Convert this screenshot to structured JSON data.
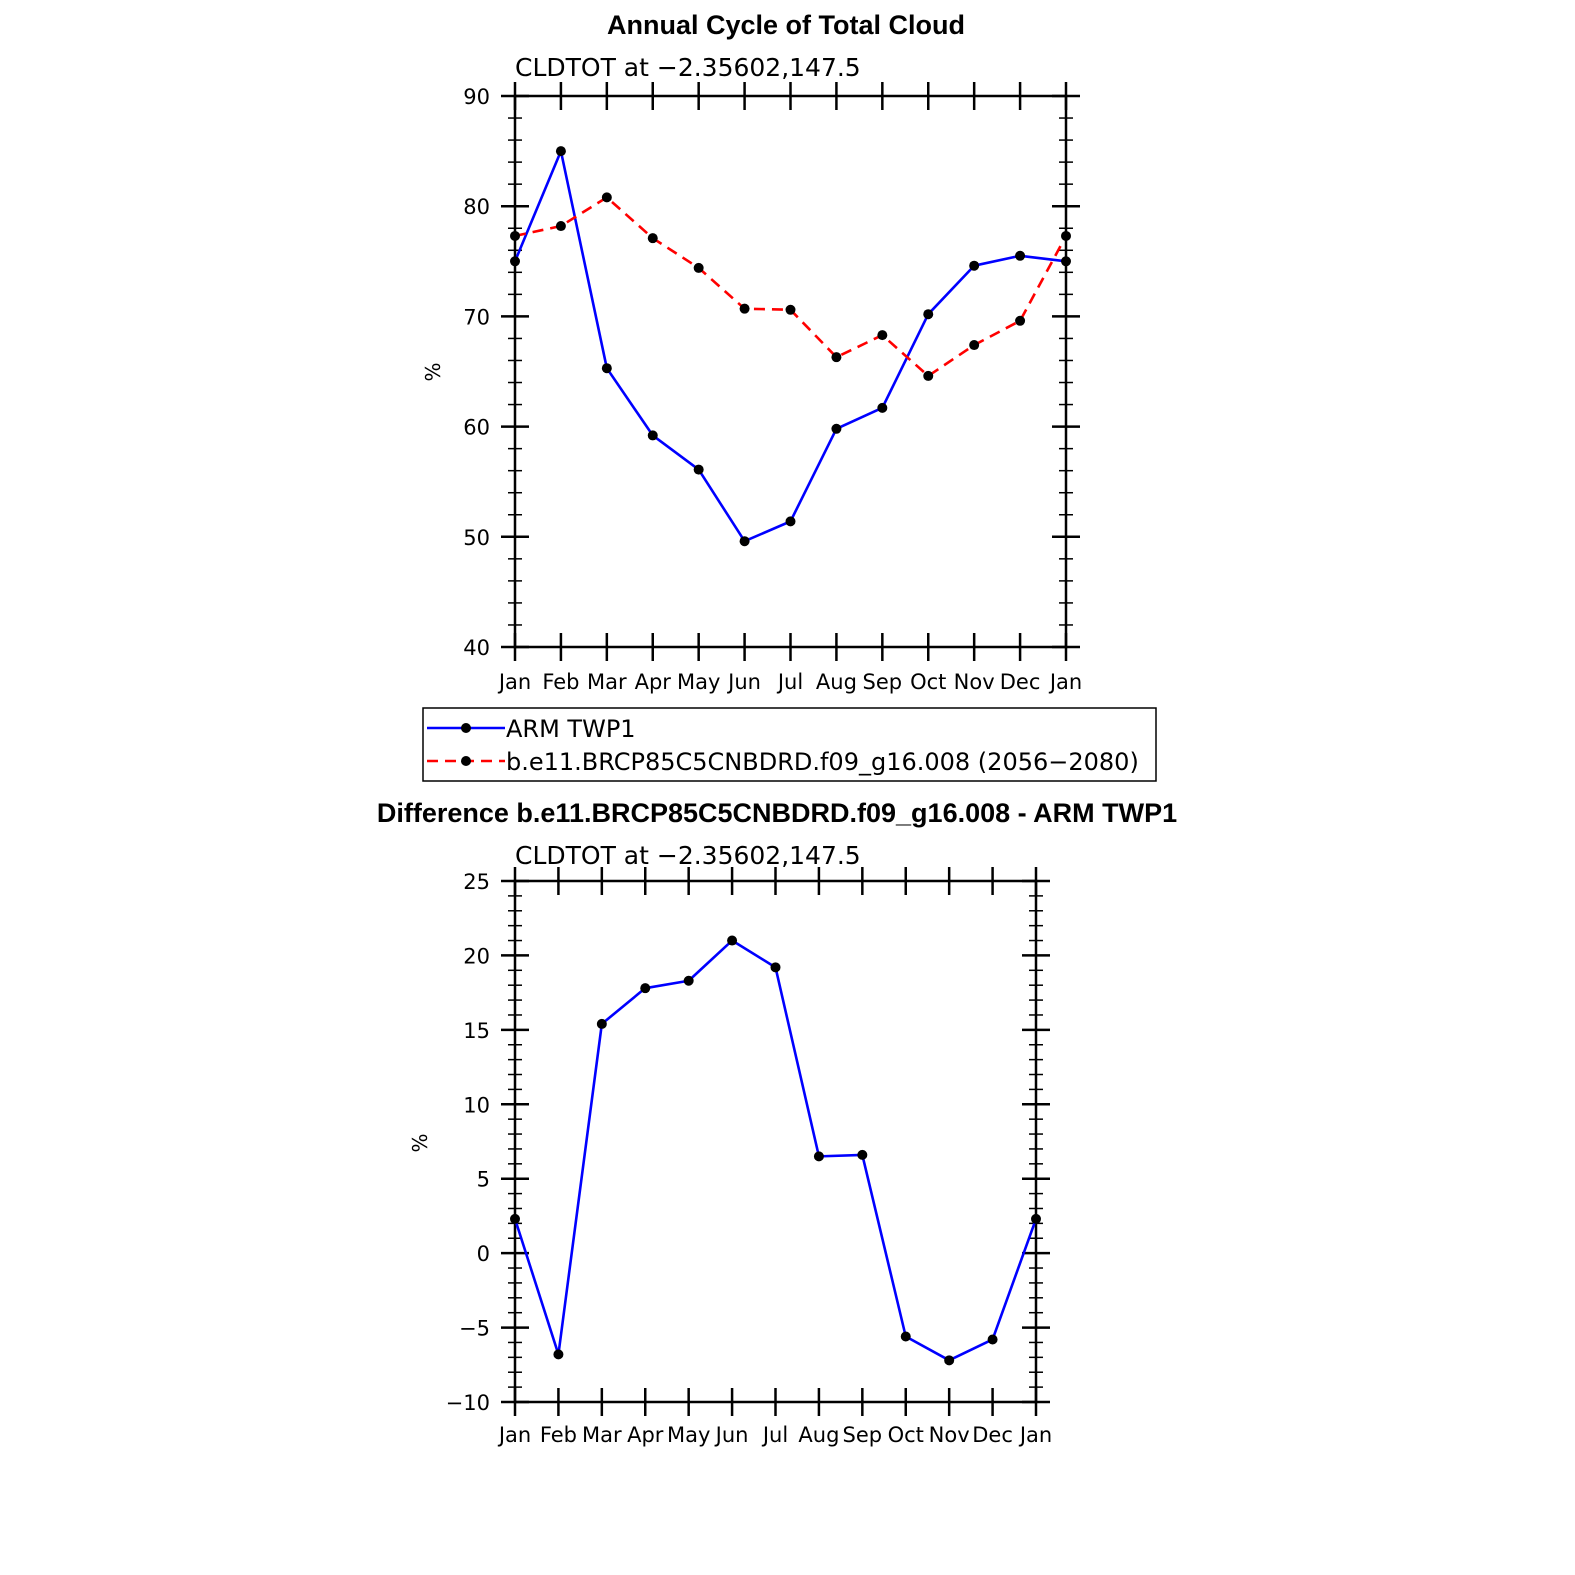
{
  "chart_data": [
    {
      "type": "line",
      "title": "Annual Cycle of Total Cloud",
      "subtitle": "CLDTOT at −2.35602,147.5",
      "ylabel": "%",
      "xlabel": "",
      "ylim": [
        40,
        90
      ],
      "yticks": [
        40,
        50,
        60,
        70,
        80,
        90
      ],
      "yticklabels": [
        "40",
        "50",
        "60",
        "70",
        "80",
        "90"
      ],
      "categories": [
        "Jan",
        "Feb",
        "Mar",
        "Apr",
        "May",
        "Jun",
        "Jul",
        "Aug",
        "Sep",
        "Oct",
        "Nov",
        "Dec",
        "Jan"
      ],
      "series": [
        {
          "name": "ARM  TWP1",
          "color": "#0000ff",
          "dashed": false,
          "values": [
            75.0,
            85.0,
            65.3,
            59.2,
            56.1,
            49.6,
            51.4,
            59.8,
            61.7,
            70.2,
            74.6,
            75.5,
            75.0
          ]
        },
        {
          "name": "b.e11.BRCP85C5CNBDRD.f09_g16.008 (2056−2080)",
          "color": "#ff0000",
          "dashed": true,
          "values": [
            77.3,
            78.2,
            80.8,
            77.1,
            74.4,
            70.7,
            70.6,
            66.3,
            68.3,
            64.6,
            67.4,
            69.6,
            77.3
          ]
        }
      ]
    },
    {
      "type": "line",
      "title": "Difference b.e11.BRCP85C5CNBDRD.f09_g16.008 - ARM TWP1",
      "subtitle": "CLDTOT at −2.35602,147.5",
      "ylabel": "%",
      "xlabel": "",
      "ylim": [
        -10,
        25
      ],
      "yticks": [
        -10,
        -5,
        0,
        5,
        10,
        15,
        20,
        25
      ],
      "yticklabels": [
        "−10",
        "−5",
        "0",
        "5",
        "10",
        "15",
        "20",
        "25"
      ],
      "categories": [
        "Jan",
        "Feb",
        "Mar",
        "Apr",
        "May",
        "Jun",
        "Jul",
        "Aug",
        "Sep",
        "Oct",
        "Nov",
        "Dec",
        "Jan"
      ],
      "series": [
        {
          "name": "Difference",
          "color": "#0000ff",
          "dashed": false,
          "values": [
            2.3,
            -6.8,
            15.4,
            17.8,
            18.3,
            21.0,
            19.2,
            6.5,
            6.6,
            -5.6,
            -7.2,
            -5.8,
            2.3
          ]
        }
      ]
    }
  ]
}
